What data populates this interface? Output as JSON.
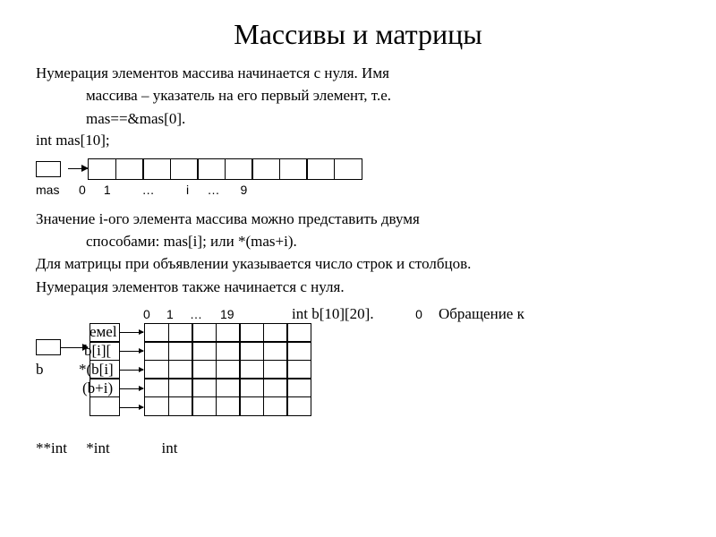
{
  "title": "Массивы и матрицы",
  "p1_a": "Нумерация элементов массива начинается с нуля. Имя",
  "p1_b": "массива – указатель на его первый элемент, т.е.",
  "p1_c": "mas==&mas[0].",
  "decl": "int mas[10];",
  "labels": {
    "mas": "mas",
    "i0": "0",
    "i1": "1",
    "dots": "…",
    "iI": "i",
    "i9": "9"
  },
  "p2_a": "Значение i-ого элемента массива можно представить двумя",
  "p2_b": "способами:   mas[i]; или *(mas+i).",
  "p3": "Для матрицы при объявлении указывается число строк и столбцов.",
  "p4": "Нумерация элементов также начинается с нуля.",
  "mheader": {
    "c0": "0",
    "c1": "1",
    "cd": "…",
    "c19": "19",
    "decl": "int b[10][20].",
    "z": "0",
    "tail": "Обращение к"
  },
  "overlay": {
    "r0": "емеl",
    "r1": "b[i][",
    "r2": "*(b[i]",
    "r3": "(b+i)"
  },
  "b": "b",
  "types": {
    "pp": "**int",
    "p": "*int",
    "t": "int"
  },
  "colors": {
    "fg": "#000000",
    "bg": "#ffffff"
  },
  "array_cells": 10,
  "matrix_rows": 5,
  "matrix_cols": 7
}
